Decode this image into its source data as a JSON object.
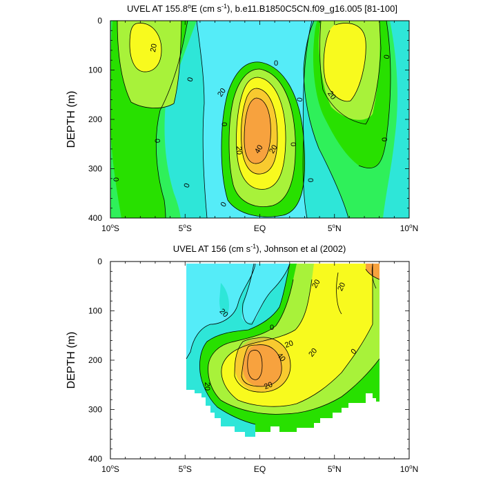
{
  "palette": {
    "cyan_dark": "#2ee6d8",
    "cyan_light": "#55ecf8",
    "green_light": "#2ff05a",
    "green": "#28e000",
    "yellow_green": "#a8f23a",
    "yellow": "#f8fa1e",
    "orange": "#f7a23e",
    "white": "#ffffff",
    "black": "#000000"
  },
  "chart_data": [
    {
      "type": "contour",
      "title": "UVEL AT 155.8°E (cm s⁻¹), b.e11.B1850C5CN.f09_g16.005 [81-100]",
      "title_parts": [
        "UVEL AT 155.8",
        "o",
        "E (cm s",
        "-1",
        "), b.e11.B1850C5CN.f09_g16.005 [81-100]"
      ],
      "ylabel": "DEPTH (m)",
      "yticks": [
        "0",
        "100",
        "200",
        "300",
        "400"
      ],
      "xticks": [
        "10°S",
        "5°S",
        "EQ",
        "5°N",
        "10°N"
      ],
      "xticks_parts": [
        [
          "10",
          "o",
          "S"
        ],
        [
          "5",
          "o",
          "S"
        ],
        [
          "EQ",
          "",
          ""
        ],
        [
          "5",
          "o",
          "N"
        ],
        [
          "10",
          "o",
          "N"
        ]
      ],
      "xlim": [
        -10,
        10
      ],
      "ylim": [
        400,
        0
      ],
      "contour_interval": 10,
      "contour_labels": [
        "20",
        "0",
        "0",
        "20",
        "0",
        "0",
        "0",
        "20",
        "40",
        "20",
        "0",
        "0",
        "0",
        "0",
        "20",
        "0",
        "0",
        "0"
      ],
      "features": [
        {
          "kind": "max",
          "lat": 0,
          "depth": 200,
          "value": 50
        },
        {
          "kind": "max",
          "lat": 5,
          "depth": 60,
          "value": 25
        },
        {
          "kind": "max",
          "lat": -8,
          "depth": 60,
          "value": 25
        },
        {
          "kind": "min",
          "lat": -3,
          "depth": 30,
          "value": -15
        }
      ]
    },
    {
      "type": "contour",
      "title": "UVEL AT 156 (cm s⁻¹), Johnson et al (2002)",
      "title_parts": [
        "UVEL AT 156 (cm s",
        "-1",
        "), Johnson et al (2002)"
      ],
      "ylabel": "DEPTH (m)",
      "yticks": [
        "0",
        "100",
        "200",
        "300",
        "400"
      ],
      "xticks": [
        "10°S",
        "5°S",
        "EQ",
        "5°N",
        "10°N"
      ],
      "xticks_parts": [
        [
          "10",
          "o",
          "S"
        ],
        [
          "5",
          "o",
          "S"
        ],
        [
          "EQ",
          "",
          ""
        ],
        [
          "5",
          "o",
          "N"
        ],
        [
          "10",
          "o",
          "N"
        ]
      ],
      "xlim": [
        -10,
        10
      ],
      "ylim": [
        400,
        0
      ],
      "contour_interval": 10,
      "contour_labels": [
        "20",
        "20",
        "20",
        "0",
        "20",
        "40",
        "20",
        "20",
        "0",
        "20"
      ],
      "features": [
        {
          "kind": "max",
          "lat": 0,
          "depth": 200,
          "value": 50
        },
        {
          "kind": "max",
          "lat": 8,
          "depth": 20,
          "value": 30
        },
        {
          "kind": "min",
          "lat": -2,
          "depth": 100,
          "value": -15
        }
      ]
    }
  ]
}
